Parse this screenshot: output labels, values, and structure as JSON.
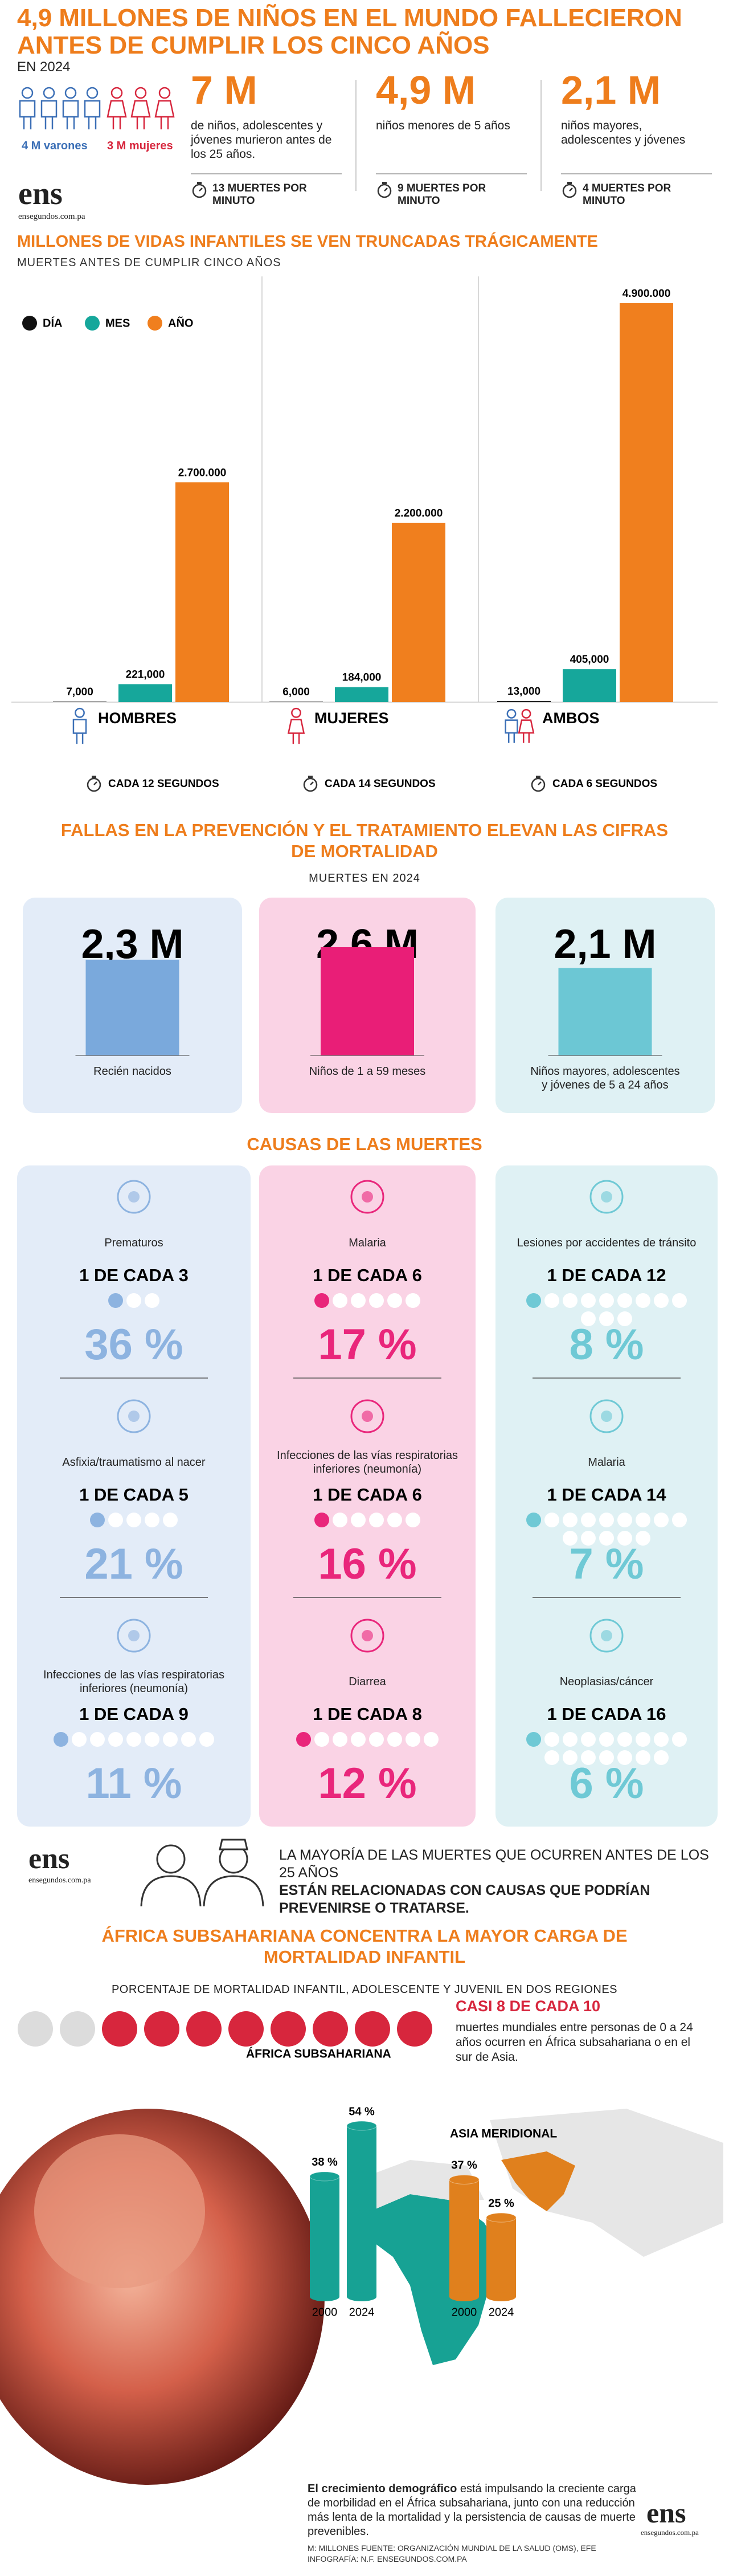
{
  "header": {
    "title": "4,9 MILLONES DE NIÑOS EN EL MUNDO FALLECIERON ANTES DE CUMPLIR LOS CINCO AÑOS",
    "year": "EN 2024",
    "people": [
      {
        "label": "4 M varones",
        "count": 4,
        "color": "#3b6fb6"
      },
      {
        "label": "3 M mujeres",
        "count": 3,
        "color": "#d7263d"
      }
    ],
    "stats": [
      {
        "value": "7 M",
        "text": "de niños, adolescentes y jóvenes murieron antes de los 25 años.",
        "rate": "13 MUERTES POR MINUTO"
      },
      {
        "value": "4,9 M",
        "text": "niños menores de 5 años",
        "rate": "9 MUERTES POR MINUTO"
      },
      {
        "value": "2,1 M",
        "text": "niños mayores, adolescentes y jóvenes",
        "rate": "4 MUERTES POR MINUTO"
      }
    ],
    "logo": "ens",
    "logo_site": "ensegundos.com.pa"
  },
  "chart_data": [
    {
      "type": "bar",
      "title": "MILLONES DE VIDAS INFANTILES SE VEN TRUNCADAS TRÁGICAMENTE",
      "subtitle": "MUERTES ANTES DE CUMPLIR CINCO AÑOS",
      "categories": [
        "HOMBRES",
        "MUJERES",
        "AMBOS"
      ],
      "notes": [
        "CADA 12 SEGUNDOS",
        "CADA 14 SEGUNDOS",
        "CADA 6 SEGUNDOS"
      ],
      "legend": "top-left",
      "series": [
        {
          "name": "DÍA",
          "color": "#111111",
          "values": [
            7000,
            6000,
            13000
          ],
          "value_labels": [
            "7,000",
            "6,000",
            "13,000"
          ]
        },
        {
          "name": "MES",
          "color": "#16a79b",
          "values": [
            221000,
            184000,
            405000
          ],
          "value_labels": [
            "221,000",
            "184,000",
            "405,000"
          ]
        },
        {
          "name": "AÑO",
          "color": "#f07f1e",
          "values": [
            2700000,
            2200000,
            4900000
          ],
          "value_labels": [
            "2.700.000",
            "2.200.000",
            "4.900.000"
          ]
        }
      ]
    },
    {
      "type": "bar",
      "title": "FALLAS EN LA PREVENCIÓN Y EL TRATAMIENTO ELEVAN LAS CIFRAS DE MORTALIDAD",
      "subtitle": "MUERTES EN 2024",
      "categories": [
        "Recién nacidos",
        "Niños de 1 a 59 meses",
        "Niños mayores, adolescentes y jóvenes de 5 a 24 años"
      ],
      "values": [
        2.3,
        2.6,
        2.1
      ],
      "value_labels": [
        "2,3 M",
        "2,6 M",
        "2,1 M"
      ],
      "colors": [
        "#7aa9dc",
        "#e91e77",
        "#6cc7d4"
      ]
    },
    {
      "type": "bar",
      "categories": [
        "2000",
        "2024"
      ],
      "series": [
        {
          "name": "ÁFRICA SUBSAHARIANA",
          "color": "#17a294",
          "values": [
            38,
            54
          ],
          "value_labels": [
            "38 %",
            "54 %"
          ]
        },
        {
          "name": "ASIA MERIDIONAL",
          "color": "#e0801d",
          "values": [
            37,
            25
          ],
          "value_labels": [
            "37 %",
            "25 %"
          ]
        }
      ]
    }
  ],
  "causes": {
    "title": "CAUSAS DE LAS MUERTES",
    "columns": [
      {
        "color": "#8db3e0",
        "items": [
          {
            "name": "Prematuros",
            "ratio": "1 DE CADA 3",
            "of": 3,
            "percent": "36 %"
          },
          {
            "name": "Asfixia/traumatismo al nacer",
            "ratio": "1 DE CADA 5",
            "of": 5,
            "percent": "21 %"
          },
          {
            "name": "Infecciones de las vías respiratorias inferiores (neumonía)",
            "ratio": "1 DE CADA 9",
            "of": 9,
            "percent": "11 %"
          }
        ]
      },
      {
        "color": "#e9267b",
        "items": [
          {
            "name": "Malaria",
            "ratio": "1 DE CADA 6",
            "of": 6,
            "percent": "17 %"
          },
          {
            "name": "Infecciones de las vías respiratorias inferiores (neumonía)",
            "ratio": "1 DE CADA 6",
            "of": 6,
            "percent": "16 %"
          },
          {
            "name": "Diarrea",
            "ratio": "1 DE CADA 8",
            "of": 8,
            "percent": "12 %"
          }
        ]
      },
      {
        "color": "#6fc9d5",
        "items": [
          {
            "name": "Lesiones por accidentes de tránsito",
            "ratio": "1 DE CADA 12",
            "of": 12,
            "percent": "8 %"
          },
          {
            "name": "Malaria",
            "ratio": "1 DE CADA 14",
            "of": 14,
            "percent": "7 %"
          },
          {
            "name": "Neoplasias/cáncer",
            "ratio": "1 DE CADA 16",
            "of": 16,
            "percent": "6 %"
          }
        ]
      }
    ]
  },
  "message": {
    "lead": "LA MAYORÍA DE LAS MUERTES QUE OCURREN ANTES DE LOS 25 AÑOS",
    "bold": "ESTÁN RELACIONADAS CON CAUSAS QUE PODRÍAN PREVENIRSE O TRATARSE."
  },
  "africa": {
    "title": "ÁFRICA SUBSAHARIANA CONCENTRA LA MAYOR CARGA DE MORTALIDAD INFANTIL",
    "subtitle": "PORCENTAJE DE MORTALIDAD INFANTIL, ADOLESCENTE Y JUVENIL EN DOS REGIONES",
    "dots": {
      "filled": 8,
      "total": 10
    },
    "highlight": "CASI 8 DE CADA 10",
    "description": "muertes mundiales entre personas de 0 a 24 años ocurren en África subsahariana o en el sur de Asia.",
    "note_bold": "El crecimiento demográfico",
    "note": "está impulsando la creciente carga de morbilidad en el África subsahariana, junto con una reducción más lenta de la mortalidad y la persistencia de causas de muerte prevenibles.",
    "credits": "M: MILLONES FUENTE: ORGANIZACIÓN MUNDIAL DE LA SALUD (OMS), EFE",
    "author": "INFOGRAFÍA: N.F. ENSEGUNDOS.COM.PA"
  }
}
